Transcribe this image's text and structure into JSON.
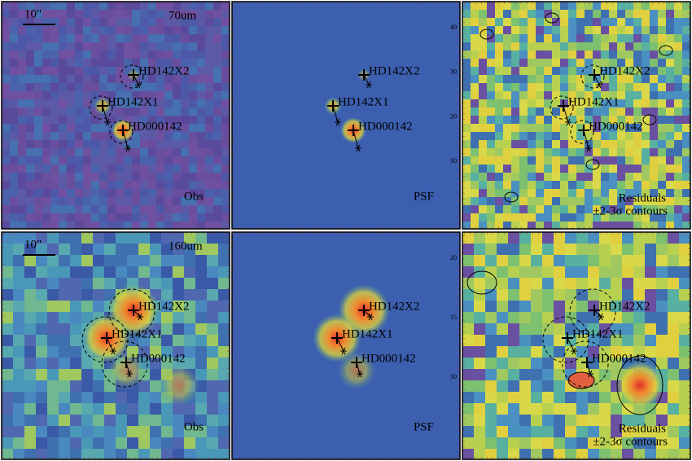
{
  "panels": [
    {
      "scale_bar": "10\"",
      "band": "70um",
      "sources": [
        "HD142X2",
        "HD142X1",
        "HD000142"
      ],
      "label": "Obs"
    },
    {
      "axis_ticks": [
        "40",
        "30",
        "20",
        "10"
      ],
      "sources": [
        "HD142X2",
        "HD142X1",
        "HD000142"
      ],
      "label": "PSF"
    },
    {
      "sources": [
        "HD142X2",
        "HD142X1",
        "HD000142"
      ],
      "label": "Residuals",
      "sublabel": "±2-3σ contours"
    },
    {
      "scale_bar": "10\"",
      "band": "160um",
      "sources": [
        "HD142X2",
        "HD142X1",
        "HD000142"
      ],
      "label": "Obs"
    },
    {
      "axis_ticks": [
        "20",
        "15",
        "10"
      ],
      "sources": [
        "HD142X2",
        "HD142X1",
        "HD000142"
      ],
      "label": "PSF"
    },
    {
      "sources": [
        "HD142X2",
        "HD142X1",
        "HD000142"
      ],
      "label": "Residuals",
      "sublabel": "±2-3σ contours"
    }
  ]
}
